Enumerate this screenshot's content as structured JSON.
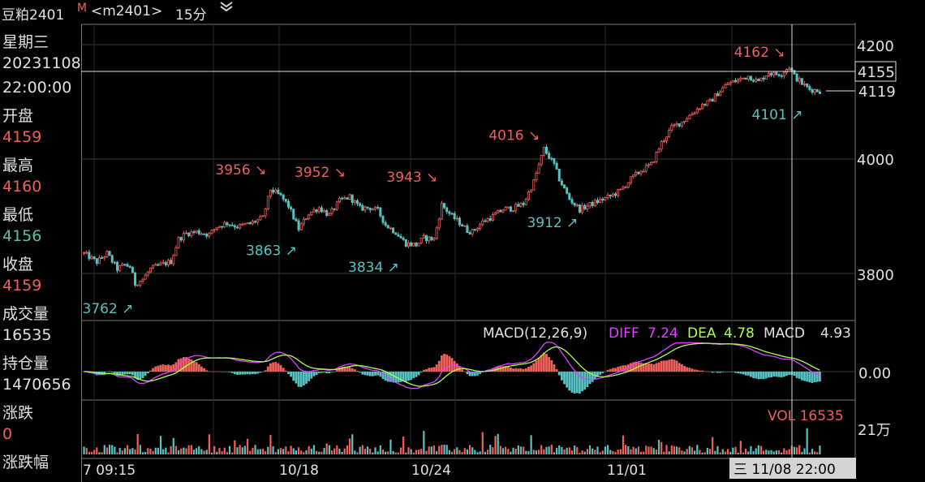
{
  "header": {
    "symbol": "豆粕2401",
    "badge": "M",
    "contract": "<m2401>",
    "period": "15分",
    "dropdown_icon": "double-chevron-down-icon"
  },
  "info_panel": {
    "weekday": "星期三",
    "date": "20231108",
    "time": "22:00:00",
    "open_label": "开盘",
    "open": "4159",
    "high_label": "最高",
    "high": "4160",
    "low_label": "最低",
    "low": "4156",
    "close_label": "收盘",
    "close": "4159",
    "volume_label": "成交量",
    "volume": "16535",
    "oi_label": "持仓量",
    "oi": "1470656",
    "change_label": "涨跌",
    "change": "0",
    "change_pct_label": "涨跌幅"
  },
  "colors": {
    "up": "#f0605a",
    "down": "#58c2c2",
    "diff": "#e040ff",
    "dea": "#a8ff50",
    "grid": "#3a3a3a",
    "text": "#e0e0e0",
    "cursor": "#dddddd"
  },
  "chart_data": [
    {
      "type": "candlestick",
      "price_axis": {
        "ticks": [
          "4200",
          "4000",
          "3800"
        ],
        "ylim": [
          3720,
          4240
        ]
      },
      "current_price": "4119",
      "crosshair_price": "4155",
      "time_axis": {
        "labels": [
          "7 09:15",
          "10/18",
          "10/24",
          "11/01"
        ],
        "crosshair_time": "三 11/08 22:00"
      },
      "approx_path": [
        [
          0,
          3835
        ],
        [
          5,
          3820
        ],
        [
          9,
          3835
        ],
        [
          13,
          3808
        ],
        [
          16,
          3815
        ],
        [
          18,
          3812
        ],
        [
          20,
          3782
        ],
        [
          23,
          3790
        ],
        [
          26,
          3808
        ],
        [
          30,
          3815
        ],
        [
          34,
          3821
        ],
        [
          37,
          3860
        ],
        [
          40,
          3870
        ],
        [
          44,
          3873
        ],
        [
          49,
          3868
        ],
        [
          52,
          3882
        ],
        [
          56,
          3888
        ],
        [
          60,
          3882
        ],
        [
          65,
          3887
        ],
        [
          70,
          3897
        ],
        [
          73,
          3947
        ],
        [
          77,
          3935
        ],
        [
          80,
          3918
        ],
        [
          84,
          3878
        ],
        [
          88,
          3905
        ],
        [
          92,
          3915
        ],
        [
          96,
          3902
        ],
        [
          100,
          3927
        ],
        [
          104,
          3934
        ],
        [
          108,
          3914
        ],
        [
          112,
          3915
        ],
        [
          115,
          3910
        ],
        [
          118,
          3885
        ],
        [
          122,
          3872
        ],
        [
          126,
          3852
        ],
        [
          130,
          3850
        ],
        [
          133,
          3862
        ],
        [
          137,
          3860
        ],
        [
          140,
          3920
        ],
        [
          144,
          3900
        ],
        [
          148,
          3885
        ],
        [
          150,
          3875
        ],
        [
          152,
          3873
        ],
        [
          156,
          3890
        ],
        [
          160,
          3900
        ],
        [
          164,
          3912
        ],
        [
          168,
          3914
        ],
        [
          172,
          3922
        ],
        [
          176,
          3960
        ],
        [
          180,
          4018
        ],
        [
          184,
          3990
        ],
        [
          186,
          3965
        ],
        [
          190,
          3930
        ],
        [
          194,
          3912
        ],
        [
          198,
          3920
        ],
        [
          202,
          3928
        ],
        [
          206,
          3935
        ],
        [
          210,
          3945
        ],
        [
          214,
          3965
        ],
        [
          218,
          3980
        ],
        [
          222,
          3990
        ],
        [
          226,
          4028
        ],
        [
          230,
          4055
        ],
        [
          234,
          4065
        ],
        [
          238,
          4080
        ],
        [
          242,
          4095
        ],
        [
          245,
          4100
        ],
        [
          248,
          4115
        ],
        [
          252,
          4132
        ],
        [
          256,
          4138
        ],
        [
          260,
          4145
        ],
        [
          264,
          4135
        ],
        [
          268,
          4152
        ],
        [
          270,
          4148
        ],
        [
          273,
          4150
        ],
        [
          276,
          4162
        ],
        [
          278,
          4145
        ],
        [
          281,
          4132
        ],
        [
          284,
          4122
        ],
        [
          288,
          4119
        ]
      ],
      "annotations": [
        {
          "label": "4162",
          "kind": "high",
          "index": 276,
          "price": 4162
        },
        {
          "label": "4101",
          "kind": "low",
          "index": 282,
          "price": 4101
        },
        {
          "label": "4016",
          "kind": "high",
          "index": 180,
          "price": 4016
        },
        {
          "label": "3912",
          "kind": "low",
          "index": 194,
          "price": 3912
        },
        {
          "label": "3956",
          "kind": "high",
          "index": 73,
          "price": 3956
        },
        {
          "label": "3952",
          "kind": "high",
          "index": 104,
          "price": 3952
        },
        {
          "label": "3943",
          "kind": "high",
          "index": 140,
          "price": 3943
        },
        {
          "label": "3863",
          "kind": "low",
          "index": 84,
          "price": 3863
        },
        {
          "label": "3834",
          "kind": "low",
          "index": 124,
          "price": 3834
        },
        {
          "label": "3762",
          "kind": "low",
          "index": 20,
          "price": 3762
        }
      ]
    },
    {
      "type": "line",
      "name": "MACD",
      "title": "MACD(12,26,9)",
      "diff_label": "DIFF",
      "diff_value": "7.24",
      "dea_label": "DEA",
      "dea_value": "4.78",
      "macd_label": "MACD",
      "macd_value": "4.93",
      "zero_tick": "0.00"
    },
    {
      "type": "bar",
      "name": "VOL",
      "title": "VOL 16535",
      "scale_tick": "21万"
    }
  ]
}
